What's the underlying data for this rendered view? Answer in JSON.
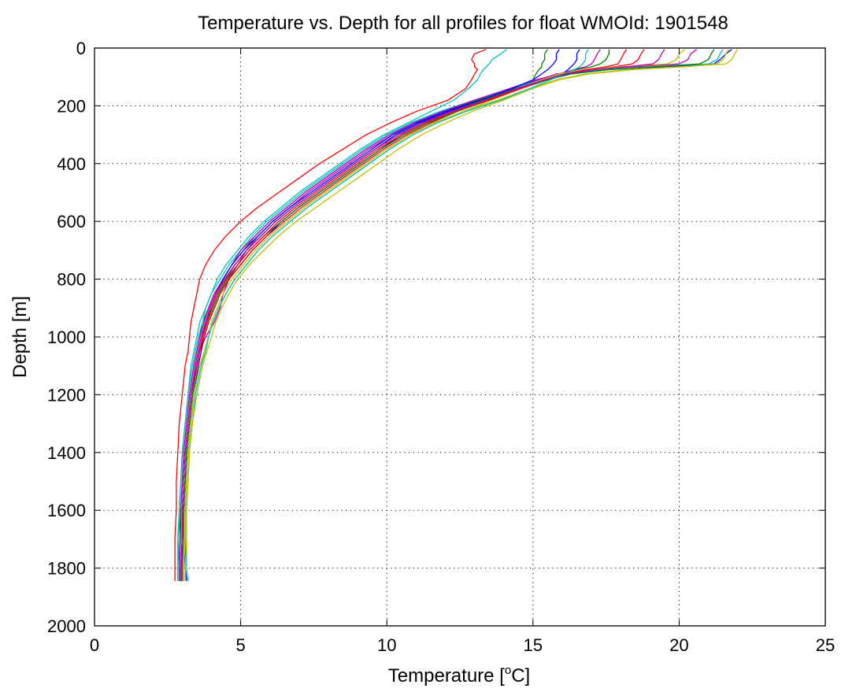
{
  "chart_data": {
    "type": "line",
    "title": "Temperature vs. Depth for all profiles for float WMOId: 1901548",
    "xlabel_prefix": "Temperature [",
    "xlabel_sup": "o",
    "xlabel_suffix": "C]",
    "ylabel": "Depth [m]",
    "xlim": [
      0,
      25
    ],
    "ylim": [
      2000,
      0
    ],
    "y_reversed": true,
    "grid": true,
    "x_ticks": [
      0,
      5,
      10,
      15,
      20,
      25
    ],
    "y_ticks": [
      0,
      200,
      400,
      600,
      800,
      1000,
      1200,
      1400,
      1600,
      1800,
      2000
    ],
    "x_tick_labels": [
      "0",
      "5",
      "10",
      "15",
      "20",
      "25"
    ],
    "y_tick_labels": [
      "0",
      "200",
      "400",
      "600",
      "800",
      "1000",
      "1200",
      "1400",
      "1600",
      "1800",
      "2000"
    ],
    "series_colors": [
      "#0000ff",
      "#008000",
      "#ff0000",
      "#00bfbf",
      "#bf00bf",
      "#bfbf00"
    ],
    "depth_levels": [
      5,
      20,
      40,
      55,
      65,
      75,
      90,
      110,
      140,
      180,
      220,
      260,
      300,
      350,
      400,
      450,
      500,
      550,
      600,
      650,
      700,
      750,
      800,
      850,
      900,
      950,
      1000,
      1050,
      1100,
      1200,
      1300,
      1400,
      1500,
      1600,
      1700,
      1800,
      1845
    ],
    "series": [
      {
        "values": [
          21.8,
          21.6,
          21.4,
          21.2,
          19.5,
          17.5,
          16.2,
          15.4,
          14.5,
          13.3,
          12.1,
          11.1,
          10.3,
          9.6,
          8.9,
          8.2,
          7.5,
          6.8,
          6.2,
          5.7,
          5.2,
          4.8,
          4.5,
          4.2,
          4.0,
          3.8,
          3.7,
          3.6,
          3.5,
          3.3,
          3.2,
          3.1,
          3.05,
          3.0,
          3.0,
          2.95,
          2.95
        ]
      },
      {
        "values": [
          17.6,
          17.6,
          17.5,
          17.3,
          17.0,
          16.5,
          15.9,
          15.2,
          14.3,
          13.1,
          11.9,
          10.9,
          10.1,
          9.3,
          8.6,
          7.9,
          7.2,
          6.6,
          6.0,
          5.5,
          5.1,
          4.7,
          4.4,
          4.1,
          3.9,
          3.7,
          3.6,
          3.5,
          3.4,
          3.25,
          3.15,
          3.05,
          3.0,
          2.95,
          2.9,
          2.9,
          2.9
        ]
      },
      {
        "values": [
          13.4,
          13.0,
          12.9,
          13.0,
          13.0,
          13.1,
          13.0,
          12.9,
          12.7,
          12.1,
          11.0,
          10.1,
          9.3,
          8.5,
          7.7,
          7.0,
          6.3,
          5.6,
          5.0,
          4.5,
          4.1,
          3.8,
          3.6,
          3.5,
          3.4,
          3.3,
          3.25,
          3.2,
          3.1,
          3.0,
          2.9,
          2.85,
          2.8,
          2.8,
          2.75,
          2.75,
          2.75
        ]
      },
      {
        "values": [
          14.1,
          13.9,
          13.6,
          13.5,
          13.4,
          13.3,
          13.2,
          13.1,
          12.8,
          12.3,
          11.5,
          10.7,
          9.9,
          9.1,
          8.4,
          7.7,
          7.0,
          6.4,
          5.8,
          5.3,
          4.9,
          4.5,
          4.2,
          4.0,
          3.8,
          3.6,
          3.5,
          3.4,
          3.3,
          3.2,
          3.1,
          3.0,
          2.95,
          2.9,
          2.9,
          2.85,
          2.85
        ]
      },
      {
        "values": [
          20.6,
          20.4,
          20.3,
          20.0,
          18.5,
          17.0,
          15.8,
          15.2,
          14.4,
          13.2,
          12.0,
          11.0,
          10.2,
          9.4,
          8.7,
          8.0,
          7.3,
          6.7,
          6.1,
          5.6,
          5.2,
          4.9,
          4.6,
          4.4,
          4.3,
          4.1,
          3.8,
          3.6,
          3.5,
          3.35,
          3.25,
          3.15,
          3.1,
          3.05,
          3.0,
          3.0,
          3.0
        ]
      },
      {
        "values": [
          22.0,
          21.9,
          21.8,
          21.6,
          20.0,
          18.2,
          16.8,
          15.8,
          14.9,
          13.8,
          12.6,
          11.6,
          10.8,
          10.0,
          9.3,
          8.6,
          7.9,
          7.2,
          6.6,
          6.0,
          5.5,
          5.1,
          4.7,
          4.4,
          4.2,
          4.0,
          3.9,
          3.8,
          3.6,
          3.4,
          3.3,
          3.2,
          3.15,
          3.1,
          3.1,
          3.05,
          3.05
        ]
      },
      {
        "values": [
          16.6,
          16.5,
          16.5,
          16.4,
          16.3,
          16.2,
          16.0,
          15.3,
          14.6,
          13.5,
          12.3,
          11.3,
          10.5,
          9.8,
          9.1,
          8.4,
          7.7,
          7.0,
          6.4,
          5.9,
          5.4,
          5.0,
          4.6,
          4.3,
          4.1,
          3.9,
          3.75,
          3.65,
          3.55,
          3.4,
          3.3,
          3.2,
          3.15,
          3.1,
          3.1,
          3.1,
          3.15
        ]
      },
      {
        "values": [
          15.5,
          15.4,
          15.4,
          15.3,
          15.3,
          15.2,
          15.1,
          15.0,
          14.4,
          13.3,
          12.2,
          11.2,
          10.4,
          9.6,
          8.9,
          8.2,
          7.5,
          6.8,
          6.2,
          5.7,
          5.2,
          4.8,
          4.5,
          4.2,
          4.0,
          3.8,
          3.7,
          3.6,
          3.5,
          3.35,
          3.25,
          3.15,
          3.1,
          3.05,
          3.0,
          3.0,
          3.0
        ]
      },
      {
        "values": [
          18.8,
          18.7,
          18.6,
          18.4,
          17.8,
          16.9,
          16.0,
          15.3,
          14.5,
          13.4,
          12.4,
          11.5,
          10.7,
          9.9,
          9.2,
          8.5,
          7.8,
          7.1,
          6.5,
          5.9,
          5.4,
          5.0,
          4.6,
          4.3,
          4.1,
          3.9,
          3.75,
          3.6,
          3.5,
          3.35,
          3.25,
          3.15,
          3.1,
          3.05,
          3.0,
          3.0,
          3.0
        ]
      },
      {
        "values": [
          21.5,
          21.4,
          21.3,
          21.0,
          19.0,
          17.2,
          16.0,
          15.3,
          14.3,
          13.0,
          11.8,
          10.8,
          10.0,
          9.2,
          8.5,
          7.8,
          7.1,
          6.5,
          5.9,
          5.4,
          5.0,
          4.6,
          4.3,
          4.0,
          3.8,
          3.7,
          3.55,
          3.45,
          3.35,
          3.2,
          3.1,
          3.0,
          2.95,
          2.9,
          2.85,
          2.85,
          2.85
        ]
      },
      {
        "values": [
          17.3,
          17.2,
          17.1,
          17.0,
          16.8,
          16.4,
          15.9,
          15.1,
          14.2,
          13.0,
          11.9,
          10.9,
          10.1,
          9.3,
          8.6,
          7.9,
          7.2,
          6.6,
          6.0,
          5.5,
          5.0,
          4.7,
          4.4,
          4.1,
          3.9,
          3.75,
          3.6,
          3.5,
          3.4,
          3.25,
          3.15,
          3.05,
          3.0,
          2.95,
          2.95,
          2.9,
          2.9
        ]
      },
      {
        "values": [
          20.2,
          20.0,
          19.9,
          19.6,
          18.0,
          16.8,
          15.9,
          15.3,
          14.6,
          13.6,
          12.6,
          11.7,
          10.9,
          10.1,
          9.4,
          8.7,
          8.0,
          7.3,
          6.7,
          6.1,
          5.6,
          5.2,
          4.8,
          4.5,
          4.25,
          4.05,
          3.9,
          3.75,
          3.6,
          3.4,
          3.3,
          3.2,
          3.15,
          3.1,
          3.1,
          3.05,
          3.05
        ]
      },
      {
        "values": [
          15.9,
          15.8,
          15.8,
          15.7,
          15.6,
          15.5,
          15.3,
          15.0,
          14.3,
          13.2,
          12.0,
          11.0,
          10.2,
          9.5,
          8.8,
          8.1,
          7.4,
          6.7,
          6.1,
          5.6,
          5.1,
          4.7,
          4.4,
          4.15,
          3.95,
          3.8,
          3.65,
          3.55,
          3.45,
          3.3,
          3.2,
          3.1,
          3.05,
          3.0,
          3.0,
          2.95,
          2.95
        ]
      },
      {
        "values": [
          21.2,
          21.1,
          21.0,
          20.7,
          19.2,
          17.6,
          16.3,
          15.5,
          14.6,
          13.5,
          12.4,
          11.4,
          10.6,
          9.8,
          9.1,
          8.4,
          7.7,
          7.0,
          6.4,
          5.8,
          5.3,
          4.9,
          4.55,
          4.25,
          4.05,
          3.85,
          3.7,
          3.6,
          3.5,
          3.35,
          3.25,
          3.15,
          3.1,
          3.05,
          3.05,
          3.0,
          3.0
        ]
      },
      {
        "values": [
          18.2,
          18.1,
          18.0,
          17.9,
          17.5,
          16.8,
          16.1,
          15.4,
          14.6,
          13.5,
          12.3,
          11.3,
          10.5,
          9.7,
          9.0,
          8.3,
          7.6,
          6.9,
          6.3,
          5.8,
          5.3,
          4.9,
          4.5,
          4.2,
          4.0,
          3.85,
          3.7,
          3.6,
          3.5,
          3.3,
          3.2,
          3.1,
          3.05,
          3.0,
          3.0,
          3.0,
          3.0
        ]
      },
      {
        "values": [
          16.9,
          16.8,
          16.8,
          16.7,
          16.6,
          16.4,
          16.1,
          15.6,
          14.9,
          13.9,
          12.7,
          11.7,
          10.9,
          10.1,
          9.4,
          8.7,
          8.0,
          7.3,
          6.7,
          6.1,
          5.6,
          5.2,
          4.8,
          4.5,
          4.25,
          4.05,
          3.9,
          3.8,
          3.65,
          3.45,
          3.35,
          3.25,
          3.2,
          3.15,
          3.15,
          3.15,
          3.2
        ]
      },
      {
        "values": [
          19.5,
          19.4,
          19.3,
          19.1,
          18.2,
          17.1,
          16.1,
          15.4,
          14.5,
          13.4,
          12.2,
          11.2,
          10.4,
          9.6,
          8.9,
          8.2,
          7.5,
          6.8,
          6.2,
          5.7,
          5.2,
          4.8,
          4.45,
          4.15,
          3.95,
          3.8,
          3.65,
          3.55,
          3.45,
          3.3,
          3.2,
          3.1,
          3.05,
          3.0,
          3.0,
          2.95,
          2.95
        ]
      },
      {
        "values": [
          21.7,
          21.6,
          21.5,
          21.3,
          20.2,
          18.4,
          16.9,
          15.9,
          15.0,
          14.0,
          12.9,
          12.0,
          11.2,
          10.4,
          9.7,
          9.0,
          8.3,
          7.6,
          6.9,
          6.3,
          5.8,
          5.3,
          4.9,
          4.6,
          4.35,
          4.15,
          4.0,
          3.85,
          3.7,
          3.5,
          3.35,
          3.25,
          3.2,
          3.15,
          3.15,
          3.1,
          3.1
        ]
      }
    ]
  }
}
